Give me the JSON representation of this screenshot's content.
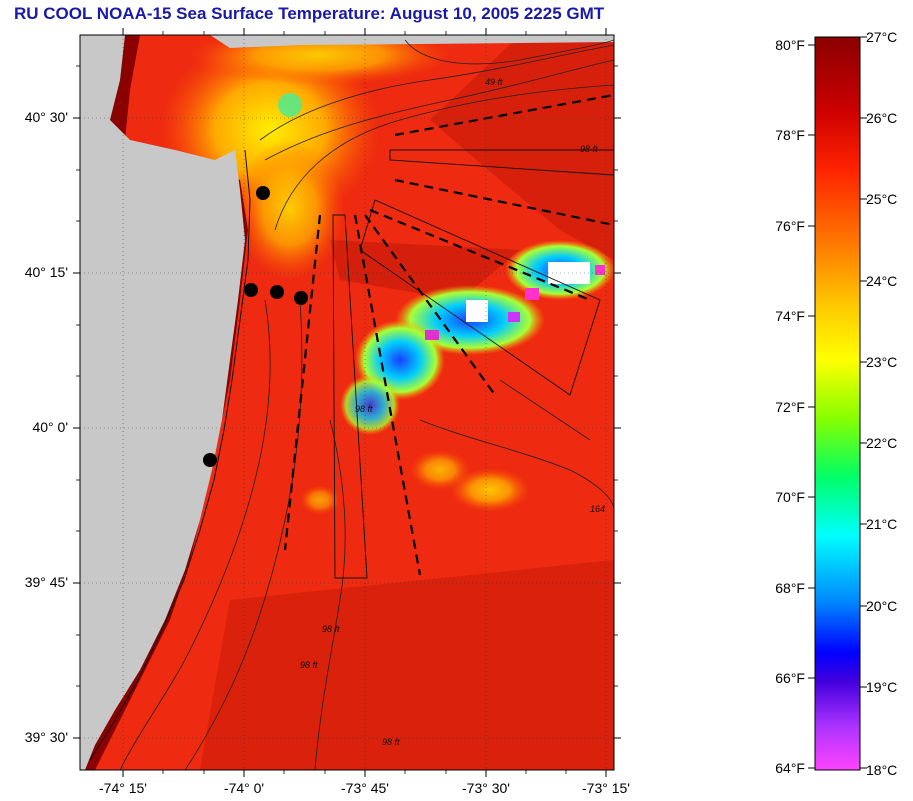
{
  "title": "RU COOL  NOAA-15  Sea Surface Temperature:  August 10, 2005 2225 GMT",
  "map": {
    "latitude_labels": [
      "40° 30'",
      "40° 15'",
      "40° 0'",
      "39° 45'",
      "39° 30'"
    ],
    "longitude_labels": [
      "-74° 15'",
      "-74° 0'",
      "-73° 45'",
      "-73° 30'",
      "-73° 15'"
    ],
    "isobath_labels": [
      "49 ft",
      "98 ft",
      "98 ft",
      "98 ft",
      "98 ft",
      "98 ft",
      "164"
    ],
    "station_count": 5
  },
  "colorbar": {
    "fahrenheit_labels": [
      "80°F",
      "78°F",
      "76°F",
      "74°F",
      "72°F",
      "70°F",
      "68°F",
      "66°F",
      "64°F"
    ],
    "celsius_labels": [
      "27°C",
      "26°C",
      "25°C",
      "24°C",
      "23°C",
      "22°C",
      "21°C",
      "20°C",
      "19°C",
      "18°C"
    ],
    "colors": {
      "c27": "#8b0000",
      "c26": "#ff1a00",
      "c25": "#ff8800",
      "c24": "#ffff00",
      "c23": "#88ff00",
      "c22": "#00ff88",
      "c21": "#00ffff",
      "c20": "#0088ff",
      "c19": "#0000ff",
      "c18": "#ff44ff"
    }
  },
  "colors": {
    "land": "#c8c8c8",
    "warm_water": "#ee2a10",
    "title": "#1a1aa8",
    "station": "#000000"
  }
}
